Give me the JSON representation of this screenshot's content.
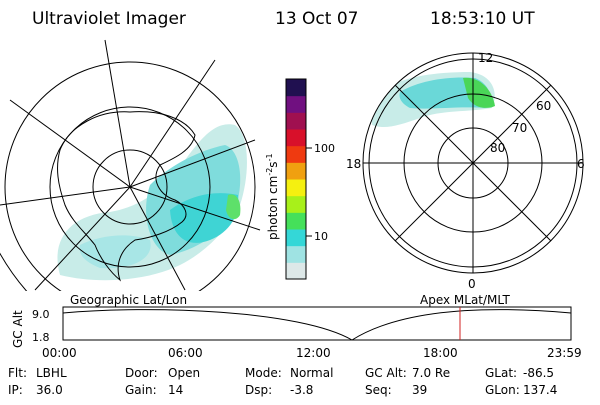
{
  "header": {
    "instrument": "Ultraviolet Imager",
    "date": "13 Oct 07",
    "time": "18:53:10 UT"
  },
  "left_map": {
    "caption": "Geographic Lat/Lon"
  },
  "colorbar": {
    "label_prefix": "photon cm",
    "exp1": "-2",
    "mid": "s",
    "exp2": "-1",
    "ticks": [
      "100",
      "10"
    ],
    "scale": "log",
    "colors": [
      "#dde8e8",
      "#9fe3e3",
      "#34d7d7",
      "#45e05a",
      "#a8f01a",
      "#f5f010",
      "#f0a010",
      "#ef3a10",
      "#d8102a",
      "#a01050",
      "#701080",
      "#201050"
    ]
  },
  "right_map": {
    "caption": "Apex MLat/MLT",
    "mlt_labels": {
      "top": "12",
      "left": "18",
      "right": "6",
      "bottom": "0"
    },
    "lat_labels": [
      "60",
      "70",
      "80"
    ]
  },
  "altitude_plot": {
    "ylabel": "GC Alt",
    "yticks": [
      "9.0",
      "1.8"
    ],
    "xticks": [
      "00:00",
      "06:00",
      "12:00",
      "18:00",
      "23:59"
    ],
    "marker_color": "#d02020"
  },
  "status": {
    "row1": [
      {
        "label": "Flt:",
        "value": "LBHL"
      },
      {
        "label": "Door:",
        "value": "Open"
      },
      {
        "label": "Mode:",
        "value": "Normal"
      },
      {
        "label": "GC Alt:",
        "value": "7.0 Re"
      },
      {
        "label": "GLat:",
        "value": "-86.5"
      }
    ],
    "row2": [
      {
        "label": "IP:",
        "value": "36.0"
      },
      {
        "label": "Gain:",
        "value": "14"
      },
      {
        "label": "Dsp:",
        "value": "-3.8"
      },
      {
        "label": "Seq:",
        "value": "39"
      },
      {
        "label": "GLon:",
        "value": "137.4"
      }
    ]
  }
}
